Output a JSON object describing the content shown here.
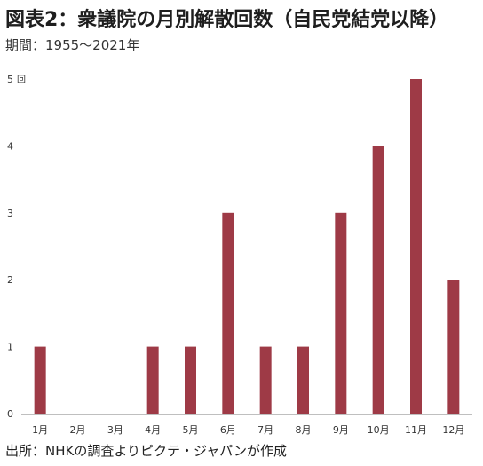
{
  "title": "図表2：衆議院の月別解散回数（自民党結党以降）",
  "subtitle": "期間：1955～2021年",
  "source": "出所：NHKの調査よりピクテ・ジャパンが作成",
  "y_unit": "回",
  "colors": {
    "bar": "#9e3a46",
    "axis": "#bfbfbf"
  },
  "chart_data": {
    "type": "bar",
    "categories": [
      "1月",
      "2月",
      "3月",
      "4月",
      "5月",
      "6月",
      "7月",
      "8月",
      "9月",
      "10月",
      "11月",
      "12月"
    ],
    "values": [
      1,
      0,
      0,
      1,
      1,
      3,
      1,
      1,
      3,
      4,
      5,
      2
    ],
    "ylim": [
      0,
      5
    ],
    "yticks": [
      "0",
      "1",
      "2",
      "3",
      "4",
      "5"
    ],
    "grid": false,
    "legend": "none"
  }
}
